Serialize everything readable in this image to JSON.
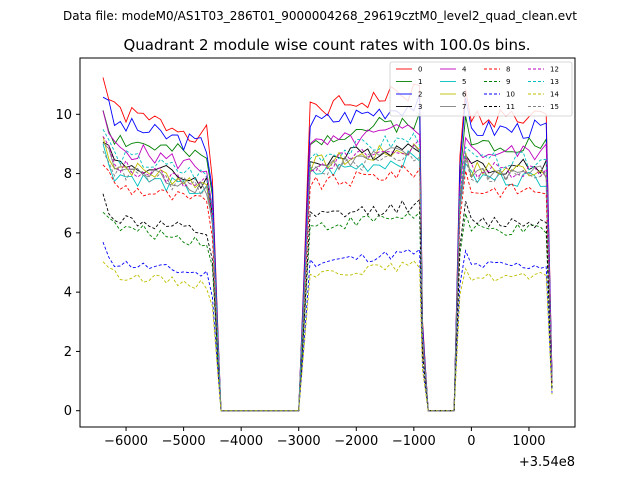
{
  "chart_data": {
    "type": "line",
    "suptitle": "Data file: modeM0/AS1T03_286T01_9000004268_29619cztM0_level2_quad_clean.evt",
    "title": "Quadrant 2 module wise count rates with 100.0s bins.",
    "xlabel": "",
    "ylabel": "",
    "x_offset_label": "+3.54e8",
    "xlim": [
      -6800,
      1800
    ],
    "ylim": [
      -0.55,
      11.9
    ],
    "xticks": [
      -6000,
      -5000,
      -4000,
      -3000,
      -2000,
      -1000,
      0,
      1000
    ],
    "xtick_labels": [
      "−6000",
      "−5000",
      "−4000",
      "−3000",
      "−2000",
      "−1000",
      "0",
      "1000"
    ],
    "yticks": [
      0,
      2,
      4,
      6,
      8,
      10
    ],
    "ytick_labels": [
      "0",
      "2",
      "4",
      "6",
      "8",
      "10"
    ],
    "legend_loc": "upper right",
    "segments": [
      {
        "start": -6400,
        "flat_end": -4600,
        "drop": [
          -4500,
          -4350
        ]
      },
      {
        "flat_start": -2900,
        "start": -2800,
        "end": -900,
        "drop": [
          -850,
          -750
        ]
      },
      {
        "start": -100,
        "end": 1300,
        "drop": [
          1400,
          1400
        ]
      }
    ],
    "gap": {
      "start": -4350,
      "end": -3000,
      "value": 0
    },
    "series": [
      {
        "name": "0",
        "color": "#ff0000",
        "dash": "solid",
        "level": 10.1,
        "seed": 1
      },
      {
        "name": "1",
        "color": "#008000",
        "dash": "solid",
        "level": 9.2,
        "seed": 2
      },
      {
        "name": "2",
        "color": "#0000ff",
        "dash": "solid",
        "level": 9.7,
        "seed": 3
      },
      {
        "name": "3",
        "color": "#000000",
        "dash": "solid",
        "level": 8.4,
        "seed": 4
      },
      {
        "name": "4",
        "color": "#bf00bf",
        "dash": "solid",
        "level": 8.9,
        "seed": 5
      },
      {
        "name": "5",
        "color": "#00bfbf",
        "dash": "solid",
        "level": 8.0,
        "seed": 6
      },
      {
        "name": "6",
        "color": "#bfbf00",
        "dash": "solid",
        "level": 8.3,
        "seed": 7
      },
      {
        "name": "7",
        "color": "#808080",
        "dash": "solid",
        "level": 8.2,
        "seed": 8
      },
      {
        "name": "8",
        "color": "#ff0000",
        "dash": "dashed",
        "level": 7.6,
        "seed": 9
      },
      {
        "name": "9",
        "color": "#008000",
        "dash": "dashed",
        "level": 6.2,
        "seed": 10
      },
      {
        "name": "10",
        "color": "#0000ff",
        "dash": "dashed",
        "level": 5.0,
        "seed": 11
      },
      {
        "name": "11",
        "color": "#000000",
        "dash": "dashed",
        "level": 6.5,
        "seed": 12
      },
      {
        "name": "12",
        "color": "#bf00bf",
        "dash": "dashed",
        "level": 8.3,
        "seed": 13
      },
      {
        "name": "13",
        "color": "#00bfbf",
        "dash": "dashed",
        "level": 8.6,
        "seed": 14
      },
      {
        "name": "14",
        "color": "#bfbf00",
        "dash": "dashed",
        "level": 4.6,
        "seed": 15
      },
      {
        "name": "15",
        "color": "#808080",
        "dash": "dashed",
        "level": 8.1,
        "seed": 16
      }
    ]
  }
}
